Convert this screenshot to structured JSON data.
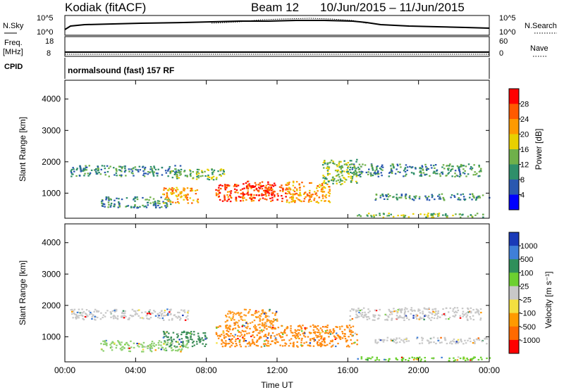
{
  "header": {
    "station": "Kodiak (fitACF)",
    "beam": "Beam 12",
    "daterange": "10/Jun/2015 – 11/Jun/2015"
  },
  "strip_labels": {
    "nsky": "N.Sky",
    "nsky_ticks": [
      "10^5",
      "10^0"
    ],
    "nsearch": "N.Search",
    "nsearch_ticks": [
      "10^5",
      "10^0"
    ],
    "freq": "Freq.",
    "freq_unit": "[MHz]",
    "freq_ticks": [
      "18",
      "8"
    ],
    "nave": "Nave",
    "nave_ticks": [
      "60",
      "0"
    ],
    "cpid": "CPID",
    "cpid_value": "normalsound (fast) 157 RF"
  },
  "chart_data": [
    {
      "type": "heatmap",
      "panel": "power",
      "ylabel": "Slant Range [km]",
      "xlabel": "",
      "y_ticks": [
        "1000",
        "2000",
        "3000",
        "4000"
      ],
      "x_ticks": [
        "00:00",
        "04:00",
        "08:00",
        "12:00",
        "16:00",
        "20:00",
        "00:00"
      ],
      "ylim": [
        200,
        4600
      ],
      "xlim": [
        0,
        24
      ],
      "colorbar_label": "Power [dB]",
      "colorbar_ticks": [
        "28",
        "24",
        "20",
        "16",
        "12",
        "8",
        "4"
      ],
      "colorbar_colors": [
        "#ff0000",
        "#ff5a00",
        "#ff9a00",
        "#e8d000",
        "#6fb04a",
        "#2f8f6a",
        "#2a58b0",
        "#0000ff"
      ],
      "regions": [
        {
          "t0": 0.3,
          "t1": 6.5,
          "r0": 1550,
          "r1": 1900,
          "level": 2
        },
        {
          "t0": 6.0,
          "t1": 9.0,
          "r0": 1450,
          "r1": 1800,
          "level": 3
        },
        {
          "t0": 2.0,
          "t1": 6.0,
          "r0": 550,
          "r1": 900,
          "level": 2
        },
        {
          "t0": 5.5,
          "t1": 7.5,
          "r0": 700,
          "r1": 1200,
          "level": 5
        },
        {
          "t0": 8.5,
          "t1": 12.5,
          "r0": 750,
          "r1": 1300,
          "level": 6
        },
        {
          "t0": 10.0,
          "t1": 11.8,
          "r0": 950,
          "r1": 1400,
          "level": 7
        },
        {
          "t0": 12.5,
          "t1": 15.0,
          "r0": 700,
          "r1": 1400,
          "level": 5
        },
        {
          "t0": 14.5,
          "t1": 16.5,
          "r0": 1300,
          "r1": 2100,
          "level": 3
        },
        {
          "t0": 16.0,
          "t1": 23.5,
          "r0": 1550,
          "r1": 1950,
          "level": 2
        },
        {
          "t0": 17.5,
          "t1": 24.0,
          "r0": 800,
          "r1": 1000,
          "level": 2
        },
        {
          "t0": 16.5,
          "t1": 24.0,
          "r0": 250,
          "r1": 380,
          "level": 3
        }
      ]
    },
    {
      "type": "heatmap",
      "panel": "velocity",
      "ylabel": "Slant Range [km]",
      "xlabel": "Time UT",
      "y_ticks": [
        "1000",
        "2000",
        "3000",
        "4000"
      ],
      "x_ticks": [
        "00:00",
        "04:00",
        "08:00",
        "12:00",
        "16:00",
        "20:00",
        "00:00"
      ],
      "ylim": [
        200,
        4600
      ],
      "xlim": [
        0,
        24
      ],
      "colorbar_label": "Velocity [m s⁻¹]",
      "colorbar_ticks": [
        "1000",
        "500",
        "100",
        "25",
        "-25",
        "-100",
        "-500",
        "-1000"
      ],
      "colorbar_colors": [
        "#1a3ab8",
        "#3f7fd8",
        "#2f8f5a",
        "#6cd030",
        "#c8c8c8",
        "#f4e040",
        "#ff9a00",
        "#ff6a00",
        "#ff0000"
      ],
      "regions": [
        {
          "t0": 0.3,
          "t1": 7.0,
          "r0": 1550,
          "r1": 1900,
          "color": "#c8c8c8"
        },
        {
          "t0": 2.0,
          "t1": 7.0,
          "r0": 550,
          "r1": 900,
          "color": "#8fd070"
        },
        {
          "t0": 5.5,
          "t1": 8.0,
          "r0": 700,
          "r1": 1200,
          "color": "#3f8f5a"
        },
        {
          "t0": 8.5,
          "t1": 16.5,
          "r0": 700,
          "r1": 1400,
          "color": "#ff8a10"
        },
        {
          "t0": 9.0,
          "t1": 12.0,
          "r0": 1300,
          "r1": 1900,
          "color": "#ff9a20"
        },
        {
          "t0": 16.0,
          "t1": 23.5,
          "r0": 1550,
          "r1": 1950,
          "color": "#c8c8c8"
        },
        {
          "t0": 17.5,
          "t1": 24.0,
          "r0": 800,
          "r1": 1000,
          "color": "#c8c8c8"
        },
        {
          "t0": 16.5,
          "t1": 24.0,
          "r0": 250,
          "r1": 380,
          "color": "#6cd030"
        }
      ]
    }
  ]
}
